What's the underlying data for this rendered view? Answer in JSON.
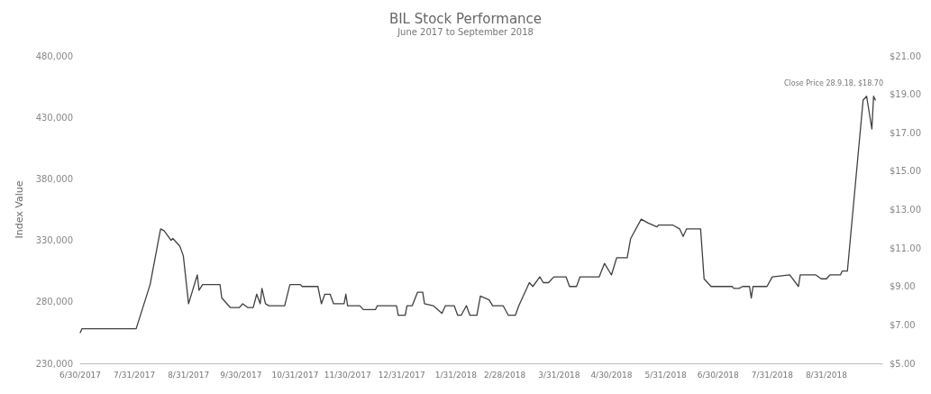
{
  "chart_data": {
    "type": "line",
    "title": "BIL Stock Performance",
    "subtitle": "June 2017 to September 2018",
    "ylabel": "Index Value",
    "x": [
      "2017-06-30",
      "2017-07-01",
      "2017-08-01",
      "2017-08-09",
      "2017-08-15",
      "2017-08-17",
      "2017-08-21",
      "2017-08-22",
      "2017-08-26",
      "2017-08-28",
      "2017-08-31",
      "2017-09-05",
      "2017-09-06",
      "2017-09-08",
      "2017-09-18",
      "2017-09-19",
      "2017-09-24",
      "2017-09-29",
      "2017-10-01",
      "2017-10-04",
      "2017-10-07",
      "2017-10-09",
      "2017-10-11",
      "2017-10-12",
      "2017-10-14",
      "2017-10-16",
      "2017-10-25",
      "2017-10-28",
      "2017-11-03",
      "2017-11-04",
      "2017-11-13",
      "2017-11-15",
      "2017-11-17",
      "2017-11-20",
      "2017-11-22",
      "2017-11-28",
      "2017-11-29",
      "2017-11-30",
      "2017-12-07",
      "2017-12-09",
      "2017-12-16",
      "2017-12-17",
      "2017-12-28",
      "2017-12-29",
      "2018-01-02",
      "2018-01-03",
      "2018-01-06",
      "2018-01-09",
      "2018-01-12",
      "2018-01-13",
      "2018-01-18",
      "2018-01-23",
      "2018-01-25",
      "2018-01-30",
      "2018-02-01",
      "2018-02-03",
      "2018-02-06",
      "2018-02-08",
      "2018-02-12",
      "2018-02-14",
      "2018-02-19",
      "2018-02-21",
      "2018-02-27",
      "2018-03-02",
      "2018-03-06",
      "2018-03-08",
      "2018-03-14",
      "2018-03-16",
      "2018-03-20",
      "2018-03-22",
      "2018-03-25",
      "2018-03-28",
      "2018-04-04",
      "2018-04-06",
      "2018-04-10",
      "2018-04-12",
      "2018-04-23",
      "2018-04-26",
      "2018-04-30",
      "2018-05-03",
      "2018-05-09",
      "2018-05-11",
      "2018-05-17",
      "2018-05-21",
      "2018-05-26",
      "2018-05-27",
      "2018-06-04",
      "2018-06-08",
      "2018-06-10",
      "2018-06-12",
      "2018-06-20",
      "2018-06-22",
      "2018-06-26",
      "2018-07-08",
      "2018-07-09",
      "2018-07-12",
      "2018-07-14",
      "2018-07-18",
      "2018-07-19",
      "2018-07-20",
      "2018-07-28",
      "2018-07-31",
      "2018-08-10",
      "2018-08-15",
      "2018-08-16",
      "2018-08-25",
      "2018-08-28",
      "2018-08-31",
      "2018-09-02",
      "2018-09-08",
      "2018-09-09",
      "2018-09-12",
      "2018-09-21",
      "2018-09-23",
      "2018-09-26",
      "2018-09-27",
      "2018-09-28"
    ],
    "series": [
      {
        "color": "#404040",
        "axis": "y2",
        "values": [
          6.6,
          6.8,
          6.8,
          9.1,
          12.0,
          11.9,
          11.4,
          11.5,
          11.1,
          10.6,
          8.1,
          9.6,
          8.8,
          9.1,
          9.1,
          8.4,
          7.9,
          7.9,
          8.1,
          7.9,
          7.9,
          8.6,
          8.1,
          8.9,
          8.1,
          8.0,
          8.0,
          9.1,
          9.1,
          9.0,
          9.0,
          8.1,
          8.6,
          8.6,
          8.1,
          8.1,
          8.6,
          8.0,
          8.0,
          7.8,
          7.8,
          8.0,
          8.0,
          7.5,
          7.5,
          8.0,
          8.0,
          8.7,
          8.7,
          8.1,
          8.0,
          7.6,
          8.0,
          8.0,
          7.5,
          7.5,
          8.0,
          7.5,
          7.5,
          8.5,
          8.3,
          8.0,
          8.0,
          7.5,
          7.5,
          8.0,
          9.2,
          9.0,
          9.5,
          9.2,
          9.2,
          9.5,
          9.5,
          9.0,
          9.0,
          9.5,
          9.5,
          10.2,
          9.6,
          10.5,
          10.5,
          11.5,
          12.5,
          12.3,
          12.1,
          12.2,
          12.2,
          12.0,
          11.6,
          12.0,
          12.0,
          9.4,
          9.0,
          9.0,
          8.9,
          8.9,
          9.0,
          9.0,
          8.4,
          9.0,
          9.0,
          9.5,
          9.6,
          9.0,
          9.6,
          9.6,
          9.4,
          9.4,
          9.6,
          9.6,
          9.8,
          9.8,
          18.7,
          18.9,
          17.2,
          18.9,
          18.7
        ]
      }
    ],
    "xlim": [
      "2017-06-30",
      "2018-10-02"
    ],
    "xticks": [
      {
        "value": "2017-06-30",
        "label": "6/30/2017"
      },
      {
        "value": "2017-07-31",
        "label": "7/31/2017"
      },
      {
        "value": "2017-08-31",
        "label": "8/31/2017"
      },
      {
        "value": "2017-09-30",
        "label": "9/30/2017"
      },
      {
        "value": "2017-10-31",
        "label": "10/31/2017"
      },
      {
        "value": "2017-11-30",
        "label": "11/30/2017"
      },
      {
        "value": "2017-12-31",
        "label": "12/31/2017"
      },
      {
        "value": "2018-01-31",
        "label": "1/31/2018"
      },
      {
        "value": "2018-02-28",
        "label": "2/28/2018"
      },
      {
        "value": "2018-03-31",
        "label": "3/31/2018"
      },
      {
        "value": "2018-04-30",
        "label": "4/30/2018"
      },
      {
        "value": "2018-05-31",
        "label": "5/31/2018"
      },
      {
        "value": "2018-06-30",
        "label": "6/30/2018"
      },
      {
        "value": "2018-07-31",
        "label": "7/31/2018"
      },
      {
        "value": "2018-08-31",
        "label": "8/31/2018"
      }
    ],
    "ylim": [
      230000,
      480000
    ],
    "yticks": [
      {
        "value": 230000,
        "label": "230,000"
      },
      {
        "value": 280000,
        "label": "280,000"
      },
      {
        "value": 330000,
        "label": "330,000"
      },
      {
        "value": 380000,
        "label": "380,000"
      },
      {
        "value": 430000,
        "label": "430,000"
      },
      {
        "value": 480000,
        "label": "480,000"
      }
    ],
    "y2lim": [
      5,
      21
    ],
    "y2ticks": [
      {
        "value": 5,
        "label": "$5.00"
      },
      {
        "value": 7,
        "label": "$7.00"
      },
      {
        "value": 9,
        "label": "$9.00"
      },
      {
        "value": 11,
        "label": "$11.00"
      },
      {
        "value": 13,
        "label": "$13.00"
      },
      {
        "value": 15,
        "label": "$15.00"
      },
      {
        "value": 17,
        "label": "$17.00"
      },
      {
        "value": 19,
        "label": "$19.00"
      },
      {
        "value": 21,
        "label": "$21.00"
      }
    ],
    "annotations": [
      "Close Price 28.9.18, $18.70"
    ],
    "grid": false,
    "marker": "none",
    "line_style": "solid"
  }
}
